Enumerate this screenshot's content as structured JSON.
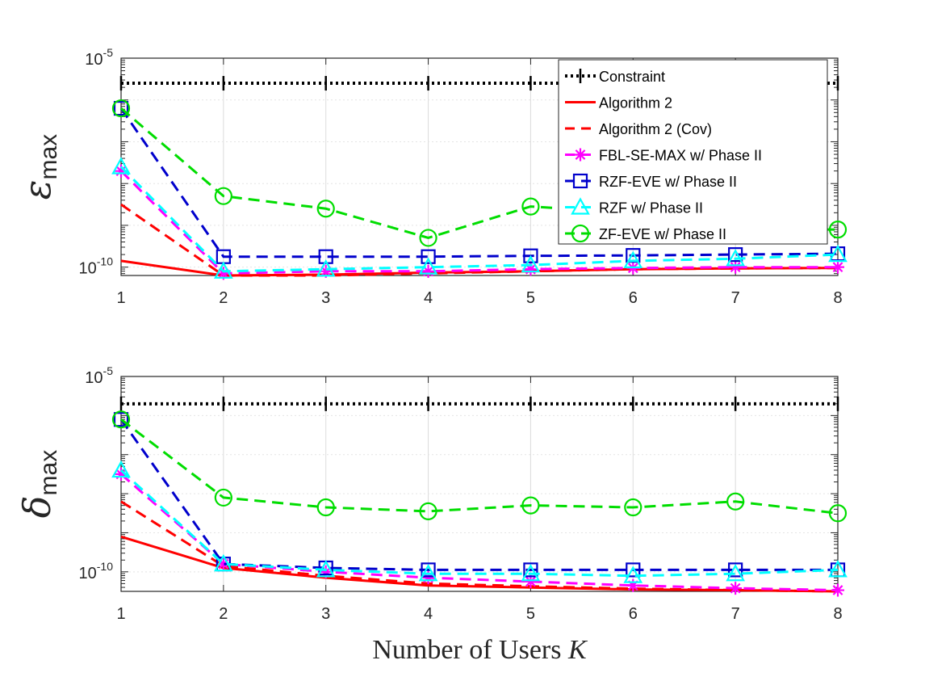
{
  "chart_data": [
    {
      "type": "line",
      "ylabel_symbol": "ε",
      "ylabel_sub": "max",
      "yscale": "log",
      "ylim_exp": [
        -10.2,
        -5
      ],
      "y_ticks": [
        {
          "base": "10",
          "exp": "-5"
        },
        {
          "base": "10",
          "exp": "-10"
        }
      ],
      "x": [
        1,
        2,
        3,
        4,
        5,
        6,
        7,
        8
      ],
      "x_tick_labels": [
        "1",
        "2",
        "3",
        "4",
        "5",
        "6",
        "7",
        "8"
      ],
      "grid": true,
      "legend": "top-right",
      "series": [
        {
          "name": "Constraint",
          "color": "#000000",
          "style": "dotted",
          "marker": "plus",
          "log10": [
            -5.6,
            -5.6,
            -5.6,
            -5.6,
            -5.6,
            -5.6,
            -5.6,
            -5.6
          ]
        },
        {
          "name": "Algorithm 2",
          "color": "#ff0000",
          "style": "solid",
          "marker": "none",
          "log10": [
            -9.85,
            -10.2,
            -10.18,
            -10.13,
            -10.1,
            -10.05,
            -10.03,
            -10.02
          ]
        },
        {
          "name": "Algorithm 2 (Cov)",
          "color": "#ff0000",
          "style": "dashed",
          "marker": "none",
          "log10": [
            -8.5,
            -10.2,
            -10.2,
            -10.15,
            -10.1,
            -10.05,
            -10.03,
            -10.02
          ]
        },
        {
          "name": "FBL-SE-MAX w/ Phase II",
          "color": "#ff00ff",
          "style": "dashed",
          "marker": "star",
          "log10": [
            -7.7,
            -10.15,
            -10.1,
            -10.1,
            -10.05,
            -10.02,
            -10.0,
            -10.0
          ]
        },
        {
          "name": "RZF-EVE w/ Phase II",
          "color": "#0000cc",
          "style": "dashed",
          "marker": "square",
          "log10": [
            -6.2,
            -9.75,
            -9.75,
            -9.75,
            -9.73,
            -9.72,
            -9.7,
            -9.68
          ]
        },
        {
          "name": "RZF w/ Phase II",
          "color": "#00ffff",
          "style": "dashed",
          "marker": "triangle",
          "log10": [
            -7.6,
            -10.1,
            -10.05,
            -10.0,
            -9.95,
            -9.85,
            -9.8,
            -9.7
          ]
        },
        {
          "name": "ZF-EVE w/ Phase II",
          "color": "#00dd00",
          "style": "dashed",
          "marker": "circle",
          "log10": [
            -6.2,
            -8.3,
            -8.6,
            -9.3,
            -8.55,
            -8.7,
            -9.1,
            -9.1
          ]
        }
      ]
    },
    {
      "type": "line",
      "ylabel_symbol": "δ",
      "ylabel_sub": "max",
      "yscale": "log",
      "ylim_exp": [
        -10.5,
        -5
      ],
      "y_ticks": [
        {
          "base": "10",
          "exp": "-5"
        },
        {
          "base": "10",
          "exp": "-10"
        }
      ],
      "x": [
        1,
        2,
        3,
        4,
        5,
        6,
        7,
        8
      ],
      "x_tick_labels": [
        "1",
        "2",
        "3",
        "4",
        "5",
        "6",
        "7",
        "8"
      ],
      "xlabel_text": "Number of Users ",
      "xlabel_var": "K",
      "grid": true,
      "series": [
        {
          "name": "Constraint",
          "color": "#000000",
          "style": "dotted",
          "marker": "plus",
          "log10": [
            -5.7,
            -5.7,
            -5.7,
            -5.7,
            -5.7,
            -5.7,
            -5.7,
            -5.7
          ]
        },
        {
          "name": "Algorithm 2",
          "color": "#ff0000",
          "style": "solid",
          "marker": "none",
          "log10": [
            -9.1,
            -9.9,
            -10.15,
            -10.35,
            -10.4,
            -10.45,
            -10.47,
            -10.5
          ]
        },
        {
          "name": "Algorithm 2 (Cov)",
          "color": "#ff0000",
          "style": "dashed",
          "marker": "none",
          "log10": [
            -8.2,
            -9.85,
            -10.1,
            -10.3,
            -10.37,
            -10.43,
            -10.47,
            -10.5
          ]
        },
        {
          "name": "FBL-SE-MAX w/ Phase II",
          "color": "#ff00ff",
          "style": "dashed",
          "marker": "star",
          "log10": [
            -7.5,
            -9.8,
            -10.0,
            -10.15,
            -10.25,
            -10.35,
            -10.42,
            -10.47
          ]
        },
        {
          "name": "RZF-EVE w/ Phase II",
          "color": "#0000cc",
          "style": "dashed",
          "marker": "square",
          "log10": [
            -6.1,
            -9.8,
            -9.9,
            -9.95,
            -9.95,
            -9.95,
            -9.95,
            -9.95
          ]
        },
        {
          "name": "RZF w/ Phase II",
          "color": "#00ffff",
          "style": "dashed",
          "marker": "triangle",
          "log10": [
            -7.4,
            -9.8,
            -9.95,
            -10.05,
            -10.05,
            -10.1,
            -10.05,
            -9.95
          ]
        },
        {
          "name": "ZF-EVE w/ Phase II",
          "color": "#00dd00",
          "style": "dashed",
          "marker": "circle",
          "log10": [
            -6.1,
            -8.1,
            -8.35,
            -8.45,
            -8.3,
            -8.35,
            -8.2,
            -8.5
          ]
        }
      ]
    }
  ]
}
